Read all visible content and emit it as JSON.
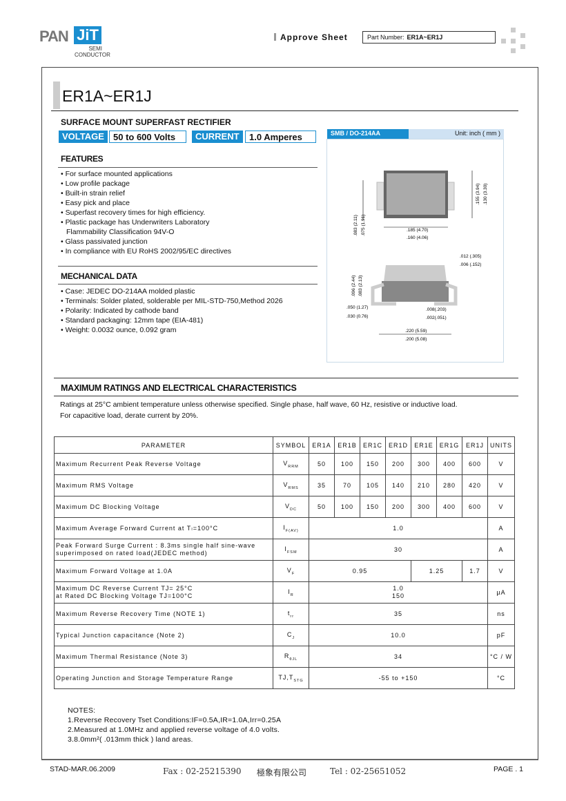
{
  "header": {
    "logo_pan": "PAN",
    "logo_jit": "JiT",
    "logo_sub1": "SEMI",
    "logo_sub2": "CONDUCTOR",
    "approve": "Approve Sheet",
    "part_label": "Part Number:",
    "part_value": "ER1A~ER1J"
  },
  "title": "ER1A~ER1J",
  "subtitle": "SURFACE  MOUNT SUPERFAST RECTIFIER",
  "tags": {
    "voltage_label": "VOLTAGE",
    "voltage_value": "50 to 600 Volts",
    "current_label": "CURRENT",
    "current_value": "1.0 Amperes"
  },
  "features": {
    "title": "FEATURES",
    "items": [
      "For surface mounted applications",
      "Low profile package",
      "Built-in strain relief",
      "Easy pick and place",
      "Superfast recovery times for high efficiency.",
      "Plastic package has Underwriters Laboratory",
      "Flammability Classification 94V-O",
      "Glass passivated junction",
      "In compliance with EU RoHS 2002/95/EC directives"
    ]
  },
  "mechanical": {
    "title": "MECHANICAL DATA",
    "items": [
      "Case: JEDEC DO-214AA molded plastic",
      "Terminals: Solder plated, solderable per MIL-STD-750,Method 2026",
      "Polarity: Indicated by cathode band",
      "Standard packaging: 12mm tape (EIA-481)",
      "Weight: 0.0032 ounce, 0.092 gram"
    ]
  },
  "package": {
    "name": "SMB / DO-214AA",
    "unit": "Unit: inch ( mm )",
    "dims": {
      "h1": ".155 (3.94)",
      "h2": ".130 (3.30)",
      "w1": ".185 (4.70)",
      "w2": ".160 (4.06)",
      "l1": ".083 (2.11)",
      "l2": ".075 (1.91)",
      "t1": ".012 (.305)",
      "t2": ".006 (.152)",
      "s1": ".096 (2.44)",
      "s2": ".083 (2.13)",
      "f1": ".050 (1.27)",
      "f2": ".030 (0.76)",
      "g1": ".008(.203)",
      "g2": ".002(.051)",
      "o1": ".220 (5.59)",
      "o2": ".200 (5.08)"
    }
  },
  "ratings": {
    "title": "MAXIMUM RATINGS AND ELECTRICAL CHARACTERISTICS",
    "line1": "Ratings at 25°C ambient temperature unless otherwise specified. Single phase, half wave, 60 Hz, resistive or inductive load.",
    "line2": "For capacitive load, derate current by 20%."
  },
  "table": {
    "headers": [
      "PARAMETER",
      "SYMBOL",
      "ER1A",
      "ER1B",
      "ER1C",
      "ER1D",
      "ER1E",
      "ER1G",
      "ER1J",
      "UNITS"
    ],
    "rows": [
      {
        "param": "Maximum Recurrent Peak Reverse Voltage",
        "sym": "V",
        "sub": "RRM",
        "cells": [
          [
            "50",
            1
          ],
          [
            "100",
            1
          ],
          [
            "150",
            1
          ],
          [
            "200",
            1
          ],
          [
            "300",
            1
          ],
          [
            "400",
            1
          ],
          [
            "600",
            1
          ]
        ],
        "unit": "V"
      },
      {
        "param": "Maximum RMS Voltage",
        "sym": "V",
        "sub": "RMS",
        "cells": [
          [
            "35",
            1
          ],
          [
            "70",
            1
          ],
          [
            "105",
            1
          ],
          [
            "140",
            1
          ],
          [
            "210",
            1
          ],
          [
            "280",
            1
          ],
          [
            "420",
            1
          ]
        ],
        "unit": "V"
      },
      {
        "param": "Maximum DC Blocking Voltage",
        "sym": "V",
        "sub": "DC",
        "cells": [
          [
            "50",
            1
          ],
          [
            "100",
            1
          ],
          [
            "150",
            1
          ],
          [
            "200",
            1
          ],
          [
            "300",
            1
          ],
          [
            "400",
            1
          ],
          [
            "600",
            1
          ]
        ],
        "unit": "V"
      },
      {
        "param": "Maximum Average Forward  Current at Tₗ=100°C",
        "sym": "I",
        "sub": "F(AV)",
        "cells": [
          [
            "1.0",
            7
          ]
        ],
        "unit": "A"
      },
      {
        "param": "Peak Forward Surge Current : 8.3ms single half sine-wave\nsuperimposed on rated load(JEDEC method)",
        "sym": "I",
        "sub": "FSM",
        "cells": [
          [
            "30",
            7
          ]
        ],
        "unit": "A"
      },
      {
        "param": "Maximum Forward Voltage at 1.0A",
        "sym": "V",
        "sub": "F",
        "cells": [
          [
            "0.95",
            4
          ],
          [
            "1.25",
            2
          ],
          [
            "1.7",
            1
          ]
        ],
        "unit": "V"
      },
      {
        "param": "Maximum DC Reverse Current  TJ= 25°C\nat Rated DC Blocking Voltage   TJ=100°C",
        "sym": "I",
        "sub": "R",
        "cells": [
          [
            "1.0\n150",
            7
          ]
        ],
        "unit": "µA"
      },
      {
        "param": "Maximum Reverse Recovery Time (NOTE 1)",
        "sym": "t",
        "sub": "rr",
        "cells": [
          [
            "35",
            7
          ]
        ],
        "unit": "ns"
      },
      {
        "param": "Typical Junction capacitance (Note 2)",
        "sym": "C",
        "sub": "J",
        "cells": [
          [
            "10.0",
            7
          ]
        ],
        "unit": "pF"
      },
      {
        "param": "Maximum Thermal Resistance (Note 3)",
        "sym": "R",
        "sub": "θJL",
        "cells": [
          [
            "34",
            7
          ]
        ],
        "unit": "°C / W"
      },
      {
        "param": "Operating Junction and Storage Temperature Range",
        "sym": "TJ,T",
        "sub": "STG",
        "cells": [
          [
            "-55 to +150",
            7
          ]
        ],
        "unit": "°C"
      }
    ]
  },
  "notes": {
    "title": "NOTES:",
    "n1": "1.Reverse Recovery Tset Conditions:IF=0.5A,IR=1.0A,Irr=0.25A",
    "n2": "2.Measured at 1.0MHz and applied reverse voltage of 4.0 volts.",
    "n3": "3.8.0mm²( .013mm thick ) land areas."
  },
  "footer": {
    "doc": "STAD-MAR.06.2009",
    "fax": "Fax : 02-25215390",
    "company": "極象有限公司",
    "tel": "Tel : 02-25651052",
    "page": "PAGE . 1"
  },
  "colors": {
    "accent": "#1a8ed0",
    "light_accent": "#cfe2f3"
  }
}
